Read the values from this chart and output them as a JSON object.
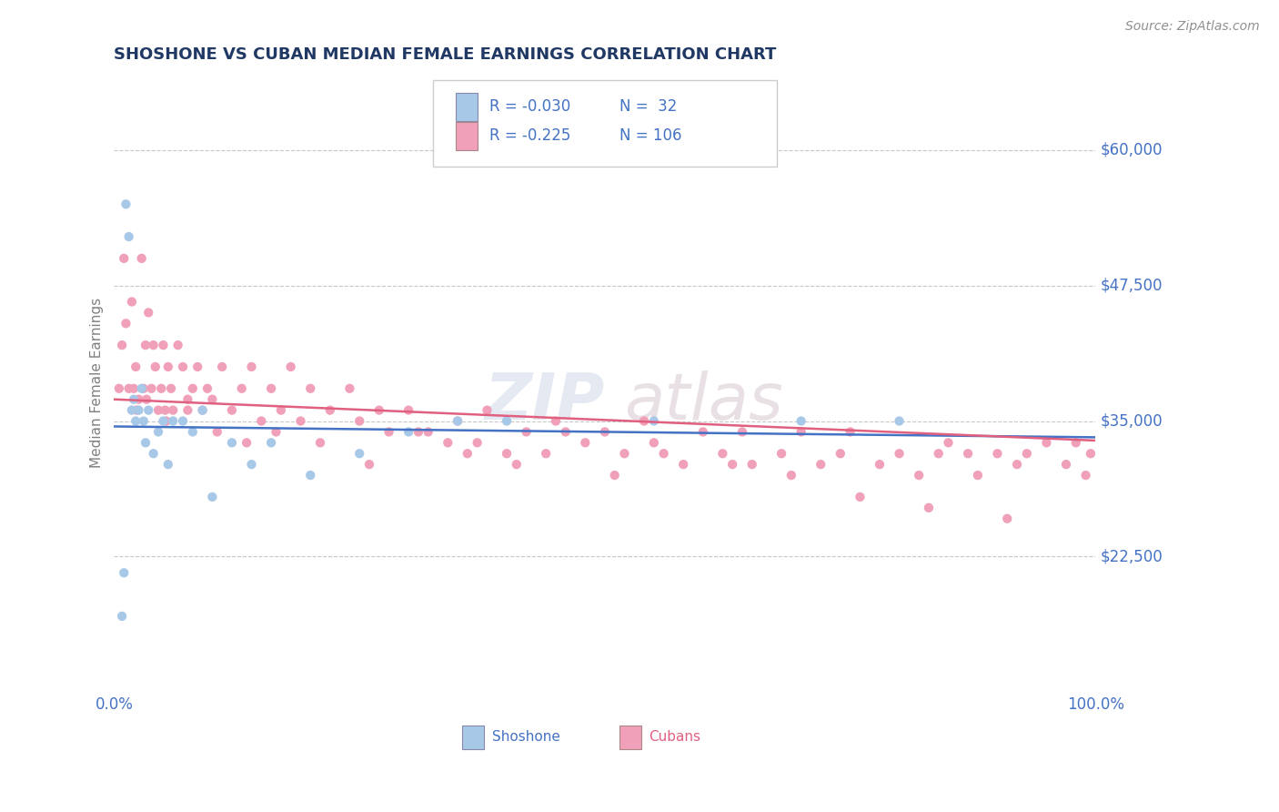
{
  "title": "SHOSHONE VS CUBAN MEDIAN FEMALE EARNINGS CORRELATION CHART",
  "source_text": "Source: ZipAtlas.com",
  "ylabel": "Median Female Earnings",
  "xlim": [
    0.0,
    100.0
  ],
  "ylim": [
    10000,
    67000
  ],
  "yticks": [
    22500,
    35000,
    47500,
    60000
  ],
  "ytick_labels": [
    "$22,500",
    "$35,000",
    "$47,500",
    "$60,000"
  ],
  "xticks": [
    0.0,
    100.0
  ],
  "xtick_labels": [
    "0.0%",
    "100.0%"
  ],
  "shoshone_color": "#a8c8e8",
  "cuban_color": "#f0a0b8",
  "shoshone_line_color": "#4472c4",
  "cuban_line_color": "#e06080",
  "background_color": "#ffffff",
  "grid_color": "#c8c8c8",
  "title_color": "#203864",
  "axis_label_color": "#4472c4",
  "ylabel_color": "#808080",
  "shoshone_R": -0.03,
  "shoshone_N": 32,
  "cuban_R": -0.225,
  "cuban_N": 106,
  "shoshone_x": [
    0.8,
    1.0,
    1.2,
    1.5,
    1.8,
    2.0,
    2.2,
    2.5,
    2.8,
    3.0,
    3.2,
    3.5,
    4.0,
    4.5,
    5.0,
    5.5,
    6.0,
    7.0,
    8.0,
    9.0,
    10.0,
    12.0,
    14.0,
    16.0,
    20.0,
    25.0,
    30.0,
    35.0,
    40.0,
    55.0,
    70.0,
    80.0
  ],
  "shoshone_y": [
    17000,
    21000,
    55000,
    52000,
    36000,
    37000,
    35000,
    36000,
    38000,
    35000,
    33000,
    36000,
    32000,
    34000,
    35000,
    31000,
    35000,
    35000,
    34000,
    36000,
    28000,
    33000,
    31000,
    33000,
    30000,
    32000,
    34000,
    35000,
    35000,
    35000,
    35000,
    35000
  ],
  "cuban_x": [
    0.5,
    0.8,
    1.0,
    1.2,
    1.5,
    1.8,
    2.0,
    2.2,
    2.5,
    2.8,
    3.0,
    3.2,
    3.5,
    3.8,
    4.0,
    4.2,
    4.5,
    4.8,
    5.0,
    5.2,
    5.5,
    5.8,
    6.0,
    6.5,
    7.0,
    7.5,
    8.0,
    8.5,
    9.0,
    9.5,
    10.0,
    11.0,
    12.0,
    13.0,
    14.0,
    15.0,
    16.0,
    17.0,
    18.0,
    19.0,
    20.0,
    22.0,
    24.0,
    25.0,
    27.0,
    28.0,
    30.0,
    32.0,
    34.0,
    35.0,
    37.0,
    38.0,
    40.0,
    42.0,
    44.0,
    45.0,
    48.0,
    50.0,
    52.0,
    54.0,
    55.0,
    58.0,
    60.0,
    62.0,
    64.0,
    65.0,
    68.0,
    70.0,
    72.0,
    74.0,
    75.0,
    78.0,
    80.0,
    82.0,
    84.0,
    85.0,
    87.0,
    88.0,
    90.0,
    92.0,
    93.0,
    95.0,
    97.0,
    98.0,
    99.0,
    99.5,
    2.3,
    3.3,
    5.3,
    7.5,
    10.5,
    13.5,
    16.5,
    21.0,
    26.0,
    31.0,
    36.0,
    41.0,
    46.0,
    51.0,
    56.0,
    63.0,
    69.0,
    76.0,
    83.0,
    91.0
  ],
  "cuban_y": [
    38000,
    42000,
    50000,
    44000,
    38000,
    46000,
    38000,
    40000,
    37000,
    50000,
    38000,
    42000,
    45000,
    38000,
    42000,
    40000,
    36000,
    38000,
    42000,
    36000,
    40000,
    38000,
    36000,
    42000,
    40000,
    37000,
    38000,
    40000,
    36000,
    38000,
    37000,
    40000,
    36000,
    38000,
    40000,
    35000,
    38000,
    36000,
    40000,
    35000,
    38000,
    36000,
    38000,
    35000,
    36000,
    34000,
    36000,
    34000,
    33000,
    35000,
    33000,
    36000,
    32000,
    34000,
    32000,
    35000,
    33000,
    34000,
    32000,
    35000,
    33000,
    31000,
    34000,
    32000,
    34000,
    31000,
    32000,
    34000,
    31000,
    32000,
    34000,
    31000,
    32000,
    30000,
    32000,
    33000,
    32000,
    30000,
    32000,
    31000,
    32000,
    33000,
    31000,
    33000,
    30000,
    32000,
    36000,
    37000,
    35000,
    36000,
    34000,
    33000,
    34000,
    33000,
    31000,
    34000,
    32000,
    31000,
    34000,
    30000,
    32000,
    31000,
    30000,
    28000,
    27000,
    26000
  ]
}
